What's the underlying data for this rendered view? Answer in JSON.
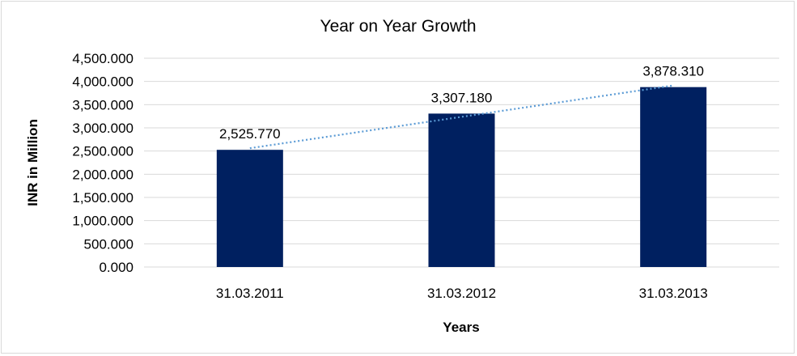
{
  "chart_data": {
    "type": "bar",
    "title": "Year on Year Growth",
    "xlabel": "Years",
    "ylabel": "INR in Million",
    "categories": [
      "31.03.2011",
      "31.03.2012",
      "31.03.2013"
    ],
    "values": [
      2525.77,
      3307.18,
      3878.31
    ],
    "data_labels": [
      "2,525.770",
      "3,307.180",
      "3,878.310"
    ],
    "ylim": [
      0,
      4500
    ],
    "yticks": [
      "0.000",
      "500.000",
      "1,000.000",
      "1,500.000",
      "2,000.000",
      "2,500.000",
      "3,000.000",
      "3,500.000",
      "4,000.000",
      "4,500.000"
    ],
    "grid": true,
    "trendline": "linear, dotted",
    "colors": {
      "bar": "#002060",
      "trendline": "#5B9BD5",
      "grid": "#d9d9d9"
    }
  }
}
